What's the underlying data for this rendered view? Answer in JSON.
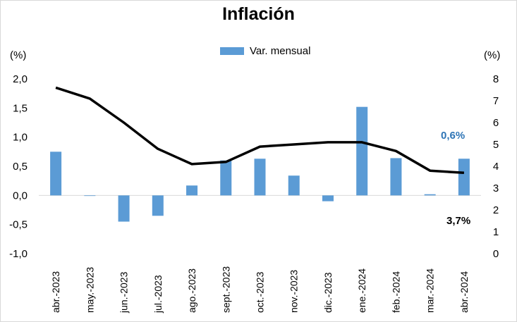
{
  "chart_data": {
    "type": "bar+line",
    "title": "Inflación",
    "left_axis_unit": "(%)",
    "right_axis_unit": "(%)",
    "categories": [
      "abr.-2023",
      "may.-2023",
      "jun.-2023",
      "jul.-2023",
      "ago.-2023",
      "sept.-2023",
      "oct.-2023",
      "nov.-2023",
      "dic.-2023",
      "ene.-2024",
      "feb.-2024",
      "mar.-2024",
      "abr.-2024"
    ],
    "series": [
      {
        "name": "Var. mensual",
        "type": "bar",
        "axis": "left",
        "color": "#5b9bd5",
        "values": [
          0.75,
          0.0,
          -0.45,
          -0.35,
          0.17,
          0.6,
          0.63,
          0.34,
          -0.1,
          1.52,
          0.64,
          0.02,
          0.63
        ]
      },
      {
        "type": "line",
        "axis": "right",
        "color": "#000000",
        "values": [
          7.6,
          7.1,
          6.0,
          4.8,
          4.1,
          4.2,
          4.9,
          5.0,
          5.1,
          5.1,
          4.7,
          3.8,
          3.7
        ]
      }
    ],
    "left_axis": {
      "min": -1.0,
      "max": 2.0,
      "ticks": [
        "-1,0",
        "-0,5",
        "0,0",
        "0,5",
        "1,0",
        "1,5",
        "2,0"
      ]
    },
    "right_axis": {
      "min": 0,
      "max": 8,
      "ticks": [
        "0",
        "1",
        "2",
        "3",
        "4",
        "5",
        "6",
        "7",
        "8"
      ]
    },
    "legend_position": "top-center",
    "annotations": [
      {
        "text": "0,6%",
        "color": "#2e75b6"
      },
      {
        "text": "3,7%",
        "color": "#000000"
      }
    ],
    "grid": false
  }
}
